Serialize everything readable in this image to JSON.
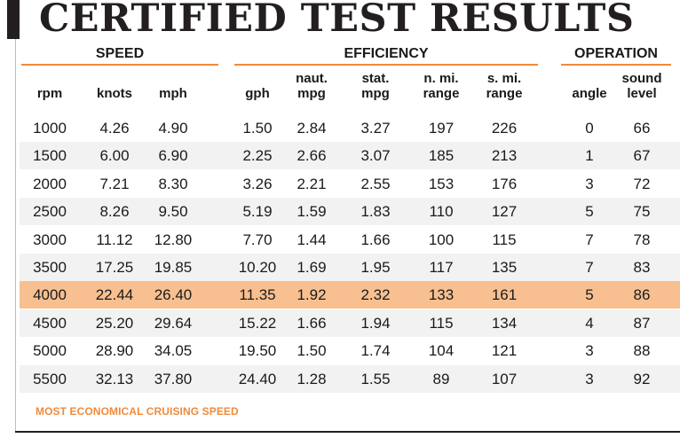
{
  "title": "CERTIFIED TEST RESULTS",
  "groups": {
    "speed": "SPEED",
    "efficiency": "EFFICIENCY",
    "operation": "OPERATION"
  },
  "columns": [
    {
      "key": "rpm",
      "label": "rpm"
    },
    {
      "key": "knots",
      "label": "knots"
    },
    {
      "key": "mph",
      "label": "mph"
    },
    {
      "key": "gph",
      "label": "gph"
    },
    {
      "key": "naut_mpg",
      "label": "naut. mpg"
    },
    {
      "key": "stat_mpg",
      "label": "stat. mpg"
    },
    {
      "key": "nmi_range",
      "label": "n. mi. range"
    },
    {
      "key": "smi_range",
      "label": "s. mi. range"
    },
    {
      "key": "angle",
      "label": "angle"
    },
    {
      "key": "sound_level",
      "label": "sound level"
    }
  ],
  "rows": [
    [
      "1000",
      "4.26",
      "4.90",
      "1.50",
      "2.84",
      "3.27",
      "197",
      "226",
      "0",
      "66"
    ],
    [
      "1500",
      "6.00",
      "6.90",
      "2.25",
      "2.66",
      "3.07",
      "185",
      "213",
      "1",
      "67"
    ],
    [
      "2000",
      "7.21",
      "8.30",
      "3.26",
      "2.21",
      "2.55",
      "153",
      "176",
      "3",
      "72"
    ],
    [
      "2500",
      "8.26",
      "9.50",
      "5.19",
      "1.59",
      "1.83",
      "110",
      "127",
      "5",
      "75"
    ],
    [
      "3000",
      "11.12",
      "12.80",
      "7.70",
      "1.44",
      "1.66",
      "100",
      "115",
      "7",
      "78"
    ],
    [
      "3500",
      "17.25",
      "19.85",
      "10.20",
      "1.69",
      "1.95",
      "117",
      "135",
      "7",
      "83"
    ],
    [
      "4000",
      "22.44",
      "26.40",
      "11.35",
      "1.92",
      "2.32",
      "133",
      "161",
      "5",
      "86"
    ],
    [
      "4500",
      "25.20",
      "29.64",
      "15.22",
      "1.66",
      "1.94",
      "115",
      "134",
      "4",
      "87"
    ],
    [
      "5000",
      "28.90",
      "34.05",
      "19.50",
      "1.50",
      "1.74",
      "104",
      "121",
      "3",
      "88"
    ],
    [
      "5500",
      "32.13",
      "37.80",
      "24.40",
      "1.28",
      "1.55",
      "89",
      "107",
      "3",
      "92"
    ]
  ],
  "highlighted_row_index": 6,
  "footnote": "MOST ECONOMICAL CRUISING SPEED",
  "colors": {
    "accent": "#f08a3c",
    "highlight_row": "#f8c090",
    "stripe": "#f2f2f2",
    "title": "#231f20"
  }
}
